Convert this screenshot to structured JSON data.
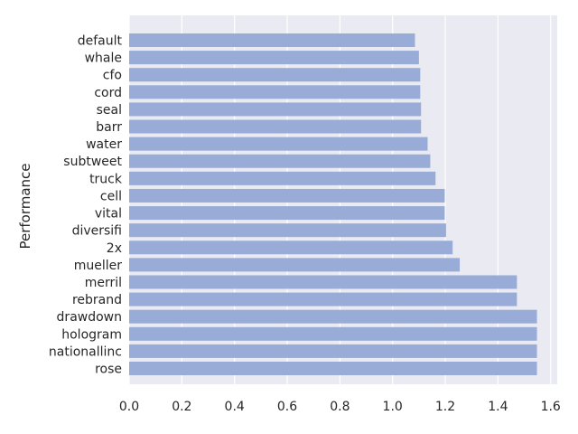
{
  "chart_data": {
    "type": "bar",
    "orientation": "horizontal",
    "ylabel": "Performance",
    "xlabel": "",
    "title": "",
    "categories": [
      "default",
      "whale",
      "cfo",
      "cord",
      "seal",
      "barr",
      "water",
      "subtweet",
      "truck",
      "cell",
      "vital",
      "diversifi",
      "2x",
      "mueller",
      "merril",
      "rebrand",
      "drawdown",
      "hologram",
      "nationallinc",
      "rose"
    ],
    "values": [
      1.085,
      1.1,
      1.105,
      1.105,
      1.108,
      1.108,
      1.133,
      1.143,
      1.163,
      1.198,
      1.198,
      1.203,
      1.228,
      1.255,
      1.472,
      1.472,
      1.548,
      1.548,
      1.548,
      1.548
    ],
    "xlim": [
      0,
      1.625
    ],
    "xticks": [
      "0.0",
      "0.2",
      "0.4",
      "0.6",
      "0.8",
      "1.0",
      "1.2",
      "1.4",
      "1.6"
    ],
    "grid": true,
    "bar_color": "#98acd7",
    "background_color": "#eaeaf2"
  }
}
